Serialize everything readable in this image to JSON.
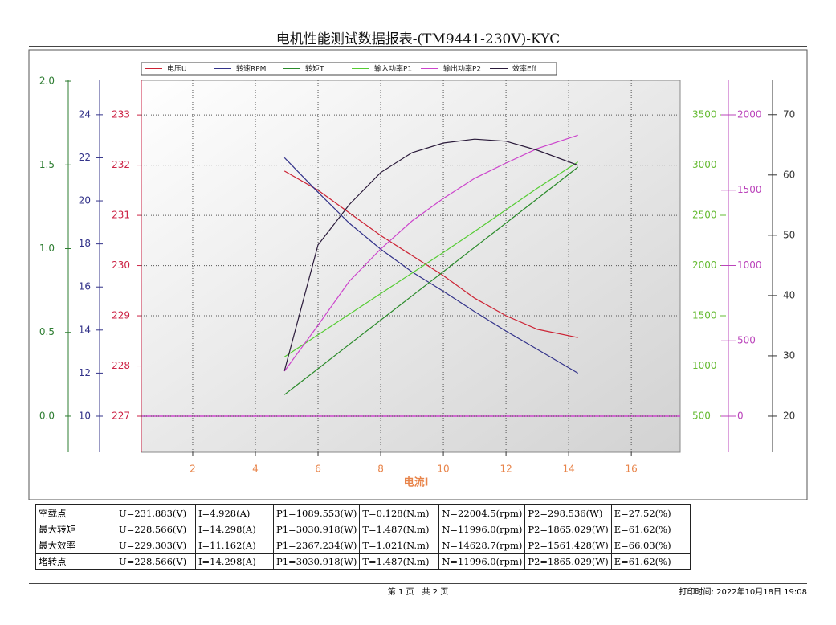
{
  "header": {
    "title": "电机性能测试数据报表-(TM9441-230V)-KYC"
  },
  "chart_data": {
    "type": "line",
    "x_label": "电流I",
    "x": [
      4.928,
      6,
      7,
      8,
      9,
      10,
      11,
      12,
      13,
      14.298
    ],
    "xlim": [
      0.36,
      17.56
    ],
    "xticks": [
      2,
      4,
      6,
      8,
      10,
      12,
      14,
      16
    ],
    "grid": true,
    "series": [
      {
        "name": "电压U",
        "color": "#cc2233",
        "values": [
          231.883,
          231.5,
          231.05,
          230.6,
          230.2,
          229.8,
          229.35,
          229.0,
          228.73,
          228.566
        ],
        "ylim": [
          226.28,
          233.69
        ],
        "yticks": [
          227,
          228,
          229,
          230,
          231,
          232,
          233
        ]
      },
      {
        "name": "转速RPM",
        "color": "#33338a",
        "values": [
          22.0045,
          20.4,
          18.96,
          17.76,
          16.7,
          15.8,
          14.85,
          13.95,
          13.1,
          11.996
        ],
        "ylim": [
          8.32,
          25.6
        ],
        "yticks": [
          10,
          12,
          14,
          16,
          18,
          20,
          22,
          24
        ]
      },
      {
        "name": "转矩T",
        "color": "#2a8a2a",
        "values": [
          0.128,
          0.283,
          0.428,
          0.573,
          0.718,
          0.863,
          1.008,
          1.153,
          1.298,
          1.487
        ],
        "ylim": [
          -0.216,
          2.005
        ],
        "yticks": [
          {
            "value": 0,
            "label": "0.0"
          },
          0.5,
          {
            "value": 1,
            "label": "1.0"
          },
          1.5,
          {
            "value": 2,
            "label": "2.0"
          }
        ]
      },
      {
        "name": "输入功率P1",
        "color": "#55cc33",
        "values": [
          1089.553,
          1310,
          1515,
          1720,
          1925,
          2130,
          2340,
          2555,
          2770,
          3030.918
        ],
        "ylim": [
          140,
          3844
        ],
        "yticks": [
          500,
          1000,
          1500,
          2000,
          2500,
          3000,
          3500
        ]
      },
      {
        "name": "输出功率P2",
        "color": "#cc44cc",
        "values": [
          298.536,
          603,
          896,
          1109,
          1296,
          1445,
          1579,
          1680,
          1776,
          1865.029
        ],
        "ylim": [
          -240,
          2229
        ],
        "yticks": [
          0,
          500,
          1000,
          1500,
          2000
        ]
      },
      {
        "name": "效率Eff",
        "color": "#2a1a3a",
        "values": [
          27.52,
          48.4,
          55.1,
          60.4,
          63.7,
          65.3,
          65.95,
          65.6,
          64.1,
          61.62
        ],
        "ylim": [
          14,
          75.7
        ],
        "yticks": [
          20,
          30,
          40,
          50,
          60,
          70
        ]
      }
    ]
  },
  "table": {
    "rows": [
      [
        "空载点",
        "U=231.883(V)",
        "I=4.928(A)",
        "P1=1089.553(W)",
        "T=0.128(N.m)",
        "N=22004.5(rpm)",
        "P2=298.536(W)",
        "E=27.52(%)"
      ],
      [
        "最大转矩",
        "U=228.566(V)",
        "I=14.298(A)",
        "P1=3030.918(W)",
        "T=1.487(N.m)",
        "N=11996.0(rpm)",
        "P2=1865.029(W)",
        "E=61.62(%)"
      ],
      [
        "最大效率",
        "U=229.303(V)",
        "I=11.162(A)",
        "P1=2367.234(W)",
        "T=1.021(N.m)",
        "N=14628.7(rpm)",
        "P2=1561.428(W)",
        "E=66.03(%)"
      ],
      [
        "堵转点",
        "U=228.566(V)",
        "I=14.298(A)",
        "P1=3030.918(W)",
        "T=1.487(N.m)",
        "N=11996.0(rpm)",
        "P2=1865.029(W)",
        "E=61.62(%)"
      ]
    ]
  },
  "footer": {
    "page": "第 1 页　共 2 页",
    "print_time": "打印时间: 2022年10月18日 19:08"
  }
}
